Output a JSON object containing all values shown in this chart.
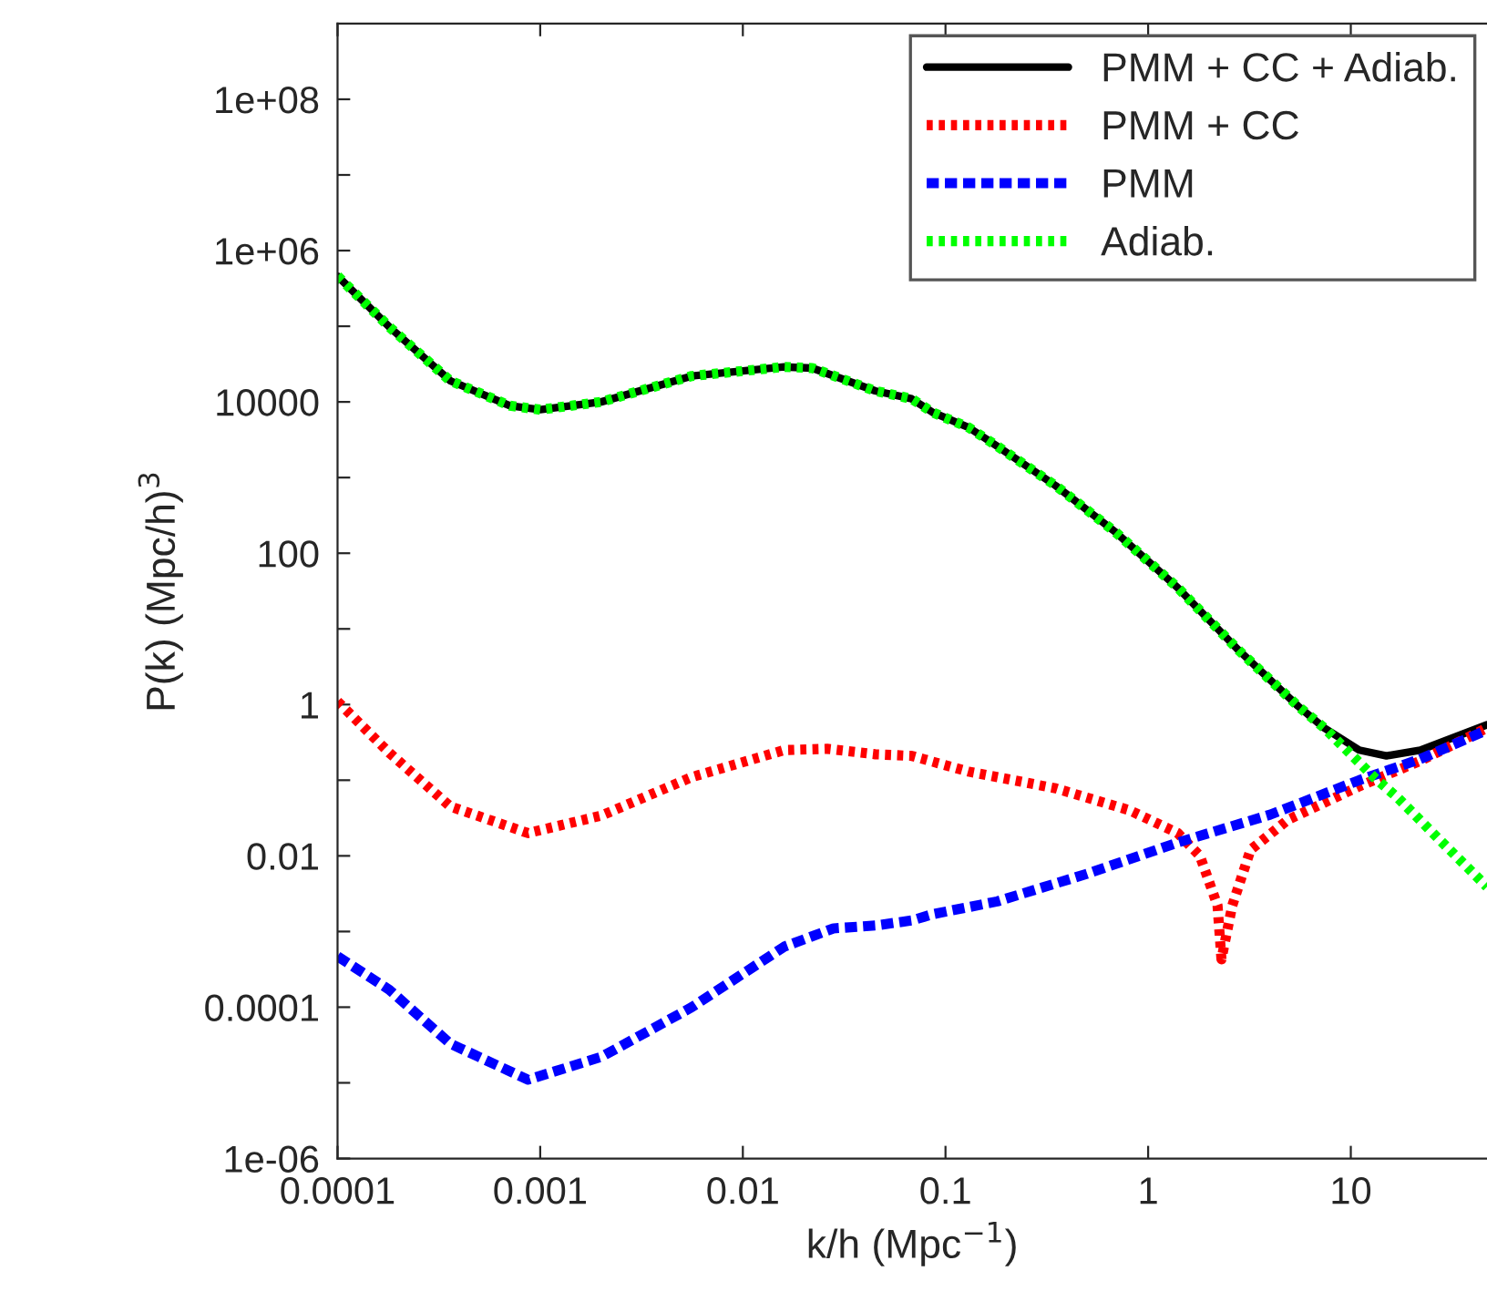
{
  "chart_data": {
    "type": "line",
    "xlabel": "k/h (Mpc$^{−1}$)",
    "ylabel": "P(k) (Mpc/h)$^{3}$",
    "log": "xy",
    "grid": false,
    "legend": "top right",
    "xlim": [
      0.0001,
      47
    ],
    "ylim": [
      1e-06,
      1000000000.0
    ],
    "xticks": [
      {
        "value": 0.0001,
        "label": "0.0001"
      },
      {
        "value": 0.001,
        "label": "0.001"
      },
      {
        "value": 0.01,
        "label": "0.01"
      },
      {
        "value": 0.1,
        "label": "0.1"
      },
      {
        "value": 1,
        "label": "1"
      },
      {
        "value": 10,
        "label": "10"
      }
    ],
    "yticks": [
      {
        "value": 1e-06,
        "label": "1e-06"
      },
      {
        "value": 1e-05,
        "label": null
      },
      {
        "value": 0.0001,
        "label": "0.0001"
      },
      {
        "value": 0.001,
        "label": null
      },
      {
        "value": 0.01,
        "label": "0.01"
      },
      {
        "value": 0.1,
        "label": null
      },
      {
        "value": 1,
        "label": "1"
      },
      {
        "value": 10,
        "label": null
      },
      {
        "value": 100,
        "label": "100"
      },
      {
        "value": 1000,
        "label": null
      },
      {
        "value": 10000,
        "label": "10000"
      },
      {
        "value": 100000,
        "label": null
      },
      {
        "value": 1000000,
        "label": "1e+06"
      },
      {
        "value": 10000000,
        "label": null
      },
      {
        "value": 100000000,
        "label": "1e+08"
      }
    ],
    "series": [
      {
        "name": "PMM + CC + Adiab.",
        "color": "#000000",
        "line_style": "solid",
        "x": [
          0.0001,
          0.00018,
          0.00036,
          0.00071,
          0.001,
          0.002,
          0.0056,
          0.016,
          0.022,
          0.045,
          0.068,
          0.087,
          0.13,
          0.18,
          0.35,
          0.69,
          1.4,
          2.8,
          5.5,
          7.4,
          11,
          15,
          22,
          47
        ],
        "values": [
          460000,
          98000,
          19000,
          8900,
          7900,
          10000,
          22000,
          29000,
          28000,
          14000,
          11000,
          7200,
          4600,
          2600,
          780,
          190,
          35,
          5.2,
          0.95,
          0.49,
          0.25,
          0.21,
          0.25,
          0.54
        ]
      },
      {
        "name": "PMM + CC",
        "color": "#ff0000",
        "line_style": "dotted",
        "x": [
          0.0001,
          0.00018,
          0.00036,
          0.00087,
          0.002,
          0.0056,
          0.016,
          0.026,
          0.045,
          0.068,
          0.13,
          0.35,
          0.81,
          1.4,
          1.8,
          2.2,
          2.3,
          2.6,
          3.2,
          4.9,
          11,
          22,
          47
        ],
        "values": [
          1.1,
          0.23,
          0.045,
          0.02,
          0.034,
          0.11,
          0.25,
          0.26,
          0.22,
          0.21,
          0.13,
          0.078,
          0.04,
          0.02,
          0.01,
          0.0022,
          0.00043,
          0.0022,
          0.012,
          0.03,
          0.083,
          0.18,
          0.49
        ]
      },
      {
        "name": "PMM",
        "color": "#0000ff",
        "line_style": "dashed",
        "x": [
          0.0001,
          0.00018,
          0.00036,
          0.00087,
          0.002,
          0.0056,
          0.016,
          0.028,
          0.045,
          0.068,
          0.087,
          0.18,
          0.5,
          1.4,
          4.0,
          11,
          22,
          47
        ],
        "values": [
          0.00047,
          0.00017,
          3.3e-05,
          1.1e-05,
          2.2e-05,
          0.0001,
          0.00063,
          0.0011,
          0.0012,
          0.0014,
          0.0017,
          0.0025,
          0.0058,
          0.015,
          0.035,
          0.1,
          0.19,
          0.46
        ]
      },
      {
        "name": "Adiab.",
        "color": "#00ff00",
        "line_style": "dotted",
        "x": [
          0.0001,
          0.00018,
          0.00036,
          0.00071,
          0.001,
          0.002,
          0.0056,
          0.016,
          0.022,
          0.045,
          0.068,
          0.087,
          0.13,
          0.18,
          0.35,
          0.69,
          1.4,
          2.8,
          5.5,
          7.4,
          13,
          17,
          27,
          47
        ],
        "values": [
          460000,
          98000,
          19000,
          8900,
          7900,
          10000,
          22000,
          29000,
          28000,
          14000,
          11000,
          7200,
          4600,
          2600,
          780,
          190,
          35,
          5.2,
          0.95,
          0.49,
          0.11,
          0.059,
          0.017,
          0.0039
        ]
      }
    ]
  }
}
